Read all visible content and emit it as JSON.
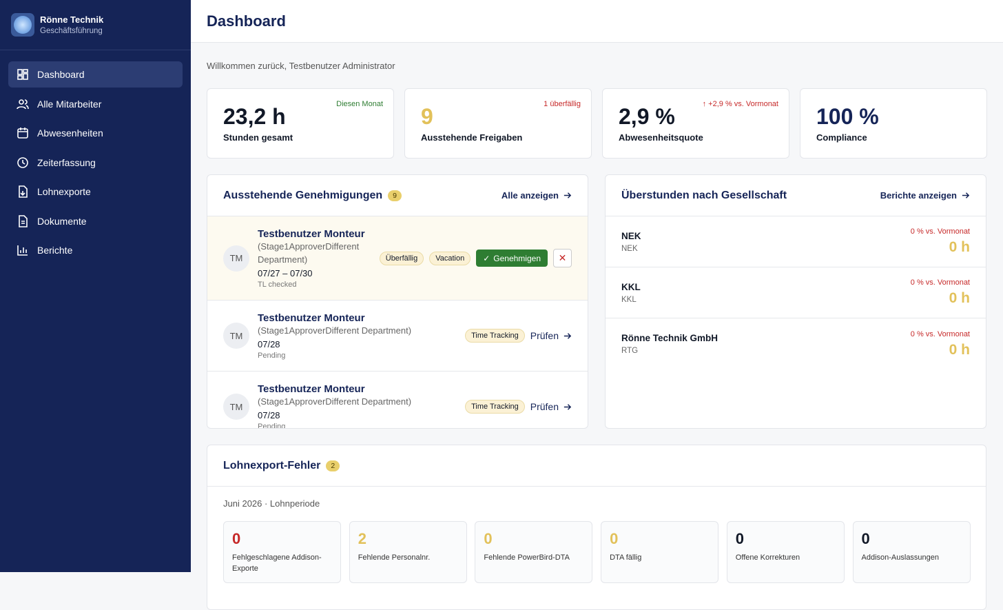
{
  "sidebar": {
    "company": "Rönne Technik",
    "role": "Geschäftsführung",
    "nav": [
      "Dashboard",
      "Alle Mitarbeiter",
      "Abwesenheiten",
      "Zeiterfassung",
      "Lohnexporte",
      "Dokumente",
      "Berichte"
    ]
  },
  "header": {
    "title": "Dashboard"
  },
  "welcome": "Willkommen zurück, Testbenutzer Administrator",
  "kpis": [
    {
      "value": "23,2 h",
      "label": "Stunden gesamt",
      "note": "Diesen Monat"
    },
    {
      "value": 9,
      "label": "Ausstehende Freigaben",
      "note": "1 überfällig"
    },
    {
      "value": "2,9 %",
      "label": "Abwesenheitsquote",
      "note": "↑ +2,9 % vs. Vormonat"
    },
    {
      "value": "100 %",
      "label": "Compliance"
    }
  ],
  "approvals": {
    "title": "Ausstehende Genehmigungen",
    "count": 9,
    "link": "Alle anzeigen",
    "items": [
      {
        "initials": "TM",
        "name": "Testbenutzer Monteur",
        "dept": "(Stage1ApproverDifferent Department)",
        "dates": "07/27 – 07/30",
        "status": "TL checked",
        "tags": [
          "Überfällig",
          "Vacation"
        ],
        "approve": "Genehmigen"
      },
      {
        "initials": "TM",
        "name": "Testbenutzer Monteur",
        "dept": "(Stage1ApproverDifferent Department)",
        "dates": "07/28",
        "status": "Pending",
        "tags": [
          "Time Tracking"
        ],
        "action": "Prüfen"
      },
      {
        "initials": "TM",
        "name": "Testbenutzer Monteur",
        "dept": "(Stage1ApproverDifferent Department)",
        "dates": "07/28",
        "status": "Pending",
        "tags": [
          "Time Tracking"
        ],
        "action": "Prüfen"
      }
    ]
  },
  "overtime": {
    "title": "Überstunden nach Gesellschaft",
    "link": "Berichte anzeigen",
    "items": [
      {
        "name": "NEK",
        "code": "NEK",
        "change": "0 % vs. Vormonat",
        "hours": "0 h"
      },
      {
        "name": "KKL",
        "code": "KKL",
        "change": "0 % vs. Vormonat",
        "hours": "0 h"
      },
      {
        "name": "Rönne Technik GmbH",
        "code": "RTG",
        "change": "0 % vs. Vormonat",
        "hours": "0 h"
      }
    ]
  },
  "payroll": {
    "title": "Lohnexport-Fehler",
    "count": 2,
    "period": "Juni 2026 · Lohnperiode",
    "stats": [
      {
        "value": 0,
        "label": "Fehlgeschlagene Addison-Exporte"
      },
      {
        "value": 2,
        "label": "Fehlende Personalnr."
      },
      {
        "value": 0,
        "label": "Fehlende PowerBird-DTA"
      },
      {
        "value": 0,
        "label": "DTA fällig"
      },
      {
        "value": 0,
        "label": "Offene Korrekturen"
      },
      {
        "value": 0,
        "label": "Addison-Auslassungen"
      }
    ]
  }
}
